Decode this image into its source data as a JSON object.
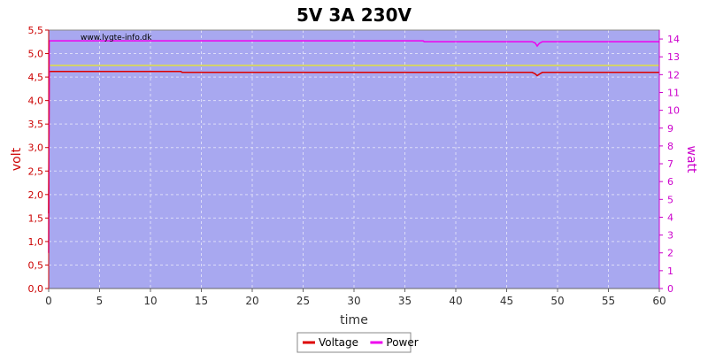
{
  "chart_data": {
    "type": "line",
    "title": "5V 3A 230V",
    "xlabel": "time",
    "ylabel_left": "volt",
    "ylabel_right": "watt",
    "watermark": "www.lygte-info.dk",
    "xlim": [
      0,
      60
    ],
    "ylim_left": [
      0,
      5.5
    ],
    "ylim_right": [
      0,
      14.5
    ],
    "x_ticks": [
      "0",
      "5",
      "10",
      "15",
      "20",
      "25",
      "30",
      "35",
      "40",
      "45",
      "50",
      "55",
      "60"
    ],
    "y_left_ticks": [
      "0,0",
      "0,5",
      "1,0",
      "1,5",
      "2,0",
      "2,5",
      "3,0",
      "3,5",
      "4,0",
      "4,5",
      "5,0",
      "5,5"
    ],
    "y_right_ticks": [
      "0",
      "1",
      "2",
      "3",
      "4",
      "5",
      "6",
      "7",
      "8",
      "9",
      "10",
      "11",
      "12",
      "13",
      "14"
    ],
    "grid": true,
    "legend_position": "bottom",
    "reference_line": {
      "axis": "left",
      "value": 4.75,
      "color": "#e0e040"
    },
    "series": [
      {
        "name": "Voltage",
        "axis": "left",
        "color": "#dd0000",
        "x": [
          0,
          0.05,
          0.1,
          13,
          13.1,
          47.5,
          47.8,
          48.0,
          48.2,
          48.5,
          60
        ],
        "y": [
          1.6,
          4.62,
          4.62,
          4.62,
          4.6,
          4.6,
          4.57,
          4.53,
          4.56,
          4.6,
          4.6
        ]
      },
      {
        "name": "Power",
        "axis": "right",
        "color": "#ee00ee",
        "x": [
          0,
          0.05,
          0.1,
          36.8,
          36.9,
          47.5,
          47.8,
          48.0,
          48.2,
          48.5,
          60
        ],
        "y": [
          2.0,
          13.9,
          13.9,
          13.9,
          13.85,
          13.85,
          13.78,
          13.6,
          13.75,
          13.85,
          13.85
        ]
      }
    ]
  }
}
